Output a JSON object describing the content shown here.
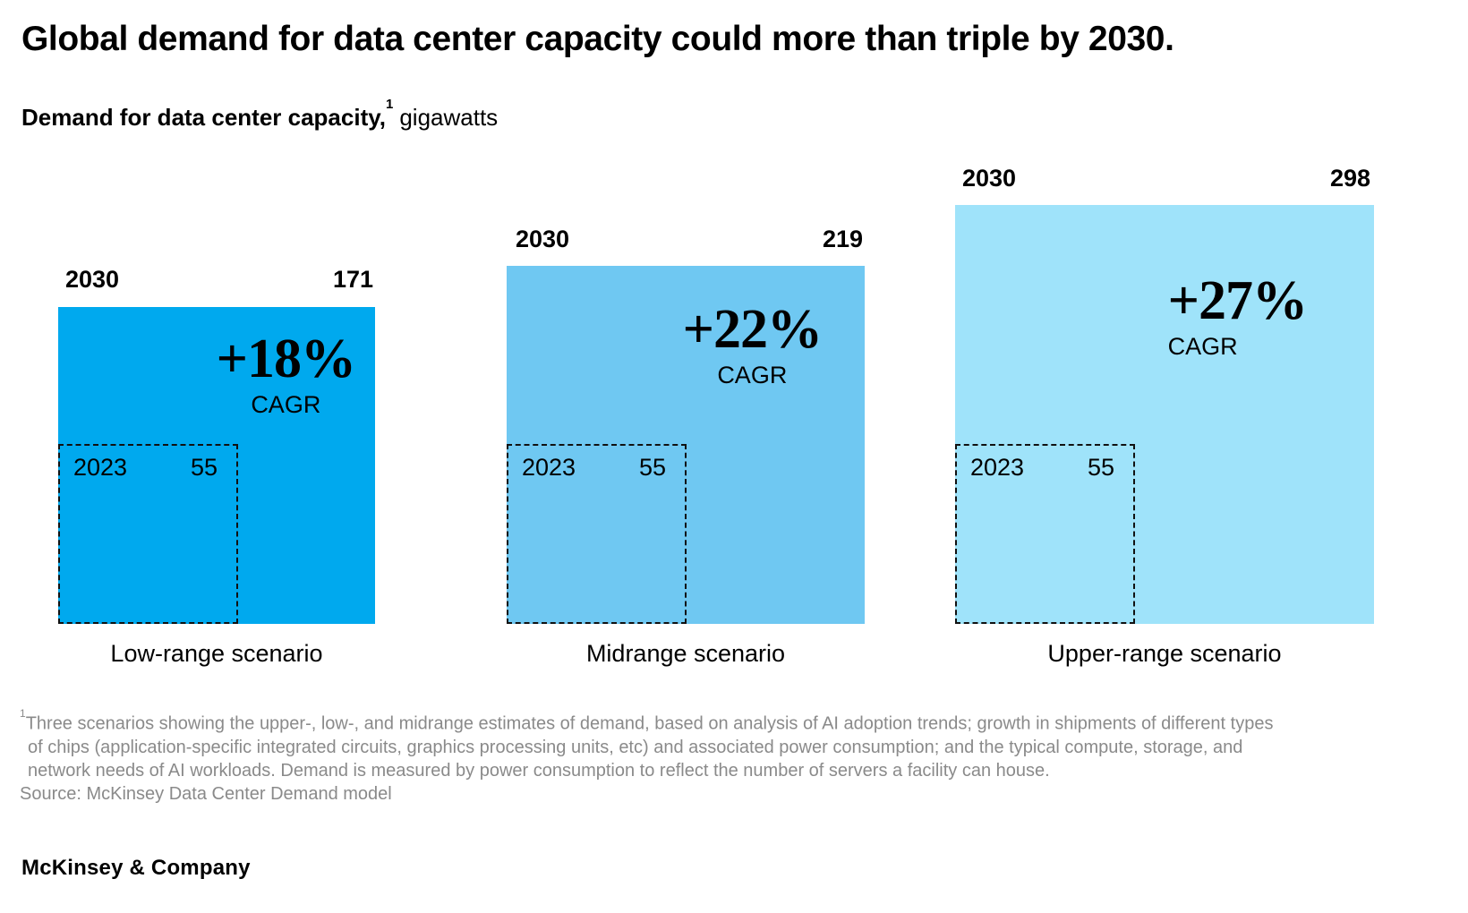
{
  "title": "Global demand for data center capacity could more than triple by 2030.",
  "subtitle": {
    "bold": "Demand for data center capacity,",
    "superscript": "1",
    "rest": "gigawatts"
  },
  "scenarios": [
    {
      "name": "Low-range scenario",
      "year_big": "2030",
      "value_big": "171",
      "year_small": "2023",
      "value_small": "55",
      "cagr_value": "+18%",
      "cagr_label": "CAGR",
      "color": "#00A9EE"
    },
    {
      "name": "Midrange scenario",
      "year_big": "2030",
      "value_big": "219",
      "year_small": "2023",
      "value_small": "55",
      "cagr_value": "+22%",
      "cagr_label": "CAGR",
      "color": "#6FC8F2"
    },
    {
      "name": "Upper-range scenario",
      "year_big": "2030",
      "value_big": "298",
      "year_small": "2023",
      "value_small": "55",
      "cagr_value": "+27%",
      "cagr_label": "CAGR",
      "color": "#9FE3FA"
    }
  ],
  "footnote": {
    "superscript": "1",
    "lines": [
      "Three scenarios showing the upper-, low-, and midrange estimates of demand, based on analysis of AI adoption trends; growth in shipments of different types",
      "of chips (application-specific integrated circuits, graphics processing units, etc) and associated power consumption; and the typical compute, storage, and",
      "network needs of AI workloads. Demand is measured by power consumption to reflect the number of servers a facility can house."
    ],
    "source": "Source: McKinsey Data Center Demand model"
  },
  "logo": "McKinsey & Company",
  "chart_data": {
    "type": "area",
    "variant": "nested-proportional-squares",
    "title": "Global demand for data center capacity could more than triple by 2030.",
    "subtitle": "Demand for data center capacity, gigawatts",
    "unit": "gigawatts",
    "categories": [
      "Low-range scenario",
      "Midrange scenario",
      "Upper-range scenario"
    ],
    "series": [
      {
        "name": "2023",
        "values": [
          55,
          55,
          55
        ]
      },
      {
        "name": "2030",
        "values": [
          171,
          219,
          298
        ]
      }
    ],
    "cagr": [
      "+18%",
      "+22%",
      "+27%"
    ],
    "colors": [
      "#00A9EE",
      "#6FC8F2",
      "#9FE3FA"
    ],
    "notes": "Square areas are proportional to gigawatt values; dashed inner square = 2023 baseline of 55 GW in each scenario",
    "source": "McKinsey Data Center Demand model"
  }
}
